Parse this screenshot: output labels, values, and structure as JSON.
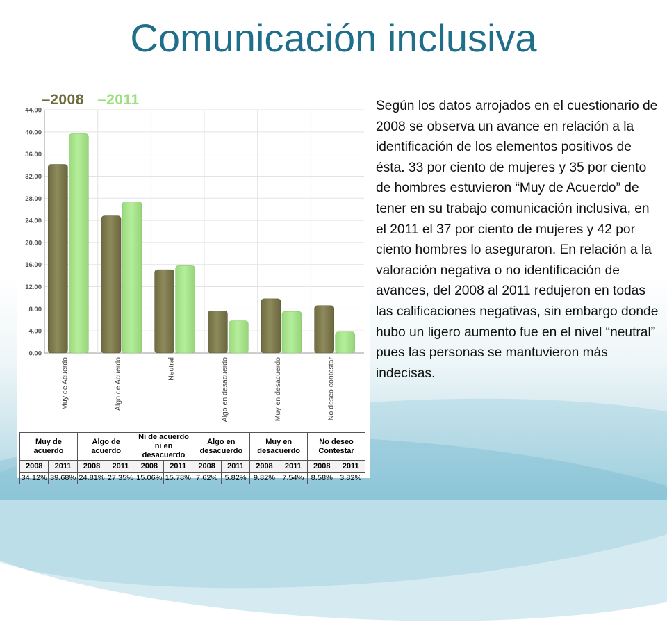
{
  "title": "Comunicación inclusiva",
  "legend": [
    "2008",
    "2011"
  ],
  "colors": {
    "title": "#1f6f8b",
    "series_2008": "#8e8a5c",
    "series_2011": "#b5ee9a"
  },
  "table": {
    "headers": [
      "Muy de acuerdo",
      "Algo de acuerdo",
      "Ni de acuerdo ni en desacuerdo",
      "Algo en desacuerdo",
      "Muy en desacuerdo",
      "No deseo Contestar"
    ],
    "years": [
      "2008",
      "2011"
    ],
    "values": [
      [
        "34.12%",
        "39.68%"
      ],
      [
        "24.81%",
        "27.35%"
      ],
      [
        "15.06%",
        "15.78%"
      ],
      [
        "7.62%",
        "5.82%"
      ],
      [
        "9.82%",
        "7.54%"
      ],
      [
        "8.58%",
        "3.82%"
      ]
    ]
  },
  "paragraph": "Según los datos arrojados en el cuestionario de 2008 se observa un avance en relación a la identificación de los elementos positivos de ésta. 33 por ciento de mujeres y 35 por ciento de hombres estuvieron “Muy de Acuerdo” de tener en su trabajo comunicación inclusiva, en el 2011 el 37 por ciento  de mujeres y 42 por ciento hombres lo aseguraron.  En relación a la valoración negativa o no identificación de avances, del 2008 al 2011 redujeron en todas las calificaciones negativas, sin embargo donde hubo un ligero aumento fue en el nivel “neutral” pues las personas se mantuvieron más indecisas.",
  "chart_data": {
    "type": "bar",
    "categories": [
      "Muy de Acuerdo",
      "Algo de Acuerdo",
      "Neutral",
      "Algo en desacuerdo",
      "Muy en desacuerdo",
      "No deseo contestar"
    ],
    "series": [
      {
        "name": "2008",
        "values": [
          34.12,
          24.81,
          15.06,
          7.62,
          9.82,
          8.58
        ]
      },
      {
        "name": "2011",
        "values": [
          39.68,
          27.35,
          15.78,
          5.82,
          7.54,
          3.82
        ]
      }
    ],
    "yticks": [
      "0.00",
      "4.00",
      "8.00",
      "12.00",
      "16.00",
      "20.00",
      "24.00",
      "28.00",
      "32.00",
      "36.00",
      "40.00",
      "44.00"
    ],
    "ylim": [
      0,
      44
    ],
    "grid": true,
    "legend_position": "top-left"
  }
}
